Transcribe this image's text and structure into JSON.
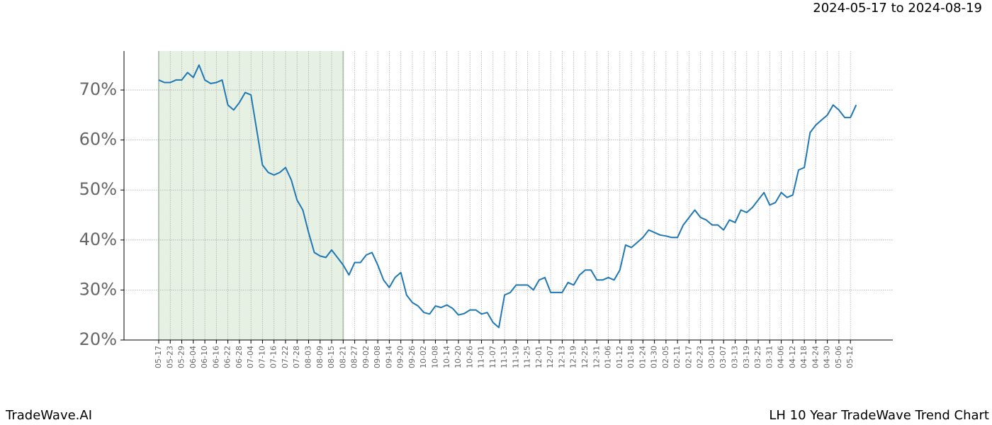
{
  "chart_data": {
    "type": "line",
    "header": "2024-05-17 to 2024-08-19",
    "footer_left": "TradeWave.AI",
    "footer_right": "LH 10 Year TradeWave Trend Chart",
    "categories": [
      "05-17",
      null,
      "05-23",
      null,
      "05-29",
      null,
      "06-04",
      null,
      "06-10",
      null,
      "06-16",
      null,
      "06-22",
      null,
      "06-28",
      null,
      "07-04",
      null,
      "07-10",
      null,
      "07-16",
      null,
      "07-22",
      null,
      "07-28",
      null,
      "08-03",
      null,
      "08-09",
      null,
      "08-15",
      null,
      "08-21",
      null,
      "08-27",
      null,
      "09-02",
      null,
      "09-08",
      null,
      "09-14",
      null,
      "09-20",
      null,
      "09-26",
      null,
      "10-02",
      null,
      "10-08",
      null,
      "10-14",
      null,
      "10-20",
      null,
      "10-26",
      null,
      "11-01",
      null,
      "11-07",
      null,
      "11-13",
      null,
      "11-19",
      null,
      "11-25",
      null,
      "12-01",
      null,
      "12-07",
      null,
      "12-13",
      null,
      "12-19",
      null,
      "12-25",
      null,
      "12-31",
      null,
      "01-06",
      null,
      "01-12",
      null,
      "01-18",
      null,
      "01-24",
      null,
      "01-30",
      null,
      "02-05",
      null,
      "02-11",
      null,
      "02-17",
      null,
      "02-23",
      null,
      "03-01",
      null,
      "03-07",
      null,
      "03-13",
      null,
      "03-19",
      null,
      "03-25",
      null,
      "03-31",
      null,
      "04-06",
      null,
      "04-12",
      null,
      "04-18",
      null,
      "04-24",
      null,
      "04-30",
      null,
      "05-06",
      null,
      "05-12",
      null
    ],
    "series": [
      {
        "color": "#1f77b4",
        "values": [
          72,
          71.5,
          71.5,
          72,
          72,
          73.5,
          72.5,
          75,
          72,
          71.3,
          71.5,
          72,
          67,
          66,
          67.5,
          69.5,
          69,
          62,
          55,
          53.5,
          53,
          53.5,
          54.5,
          52,
          48,
          46,
          41.5,
          37.5,
          36.8,
          36.5,
          38,
          36.5,
          35,
          33,
          35.5,
          35.5,
          37,
          37.5,
          35,
          32,
          30.5,
          32.5,
          33.5,
          29,
          27.5,
          26.8,
          25.5,
          25.2,
          26.8,
          26.5,
          27,
          26.3,
          25,
          25.3,
          26,
          26,
          25.2,
          25.5,
          23.5,
          22.5,
          29,
          29.5,
          31,
          31,
          31,
          30,
          32,
          32.5,
          29.5,
          29.5,
          29.5,
          31.5,
          31,
          33,
          34,
          34,
          32,
          32,
          32.5,
          32,
          34,
          39,
          38.5,
          39.5,
          40.5,
          42,
          41.5,
          41,
          40.8,
          40.5,
          40.5,
          43,
          44.5,
          46,
          44.5,
          44,
          43,
          43,
          42,
          44,
          43.5,
          46,
          45.5,
          46.5,
          48,
          49.5,
          47,
          47.5,
          49.5,
          48.5,
          49,
          54,
          54.5,
          61.5,
          63,
          64,
          65,
          67,
          66,
          64.5,
          64.5,
          67
        ]
      }
    ],
    "highlight": {
      "start": "05-17",
      "end": "08-21",
      "color": "#e6f0e3"
    },
    "ylim": [
      20,
      77.8
    ],
    "yticks": [
      {
        "value": 20,
        "label": "20%"
      },
      {
        "value": 30,
        "label": "30%"
      },
      {
        "value": 40,
        "label": "40%"
      },
      {
        "value": 50,
        "label": "50%"
      },
      {
        "value": 60,
        "label": "60%"
      },
      {
        "value": 70,
        "label": "70%"
      }
    ],
    "grid": true
  }
}
